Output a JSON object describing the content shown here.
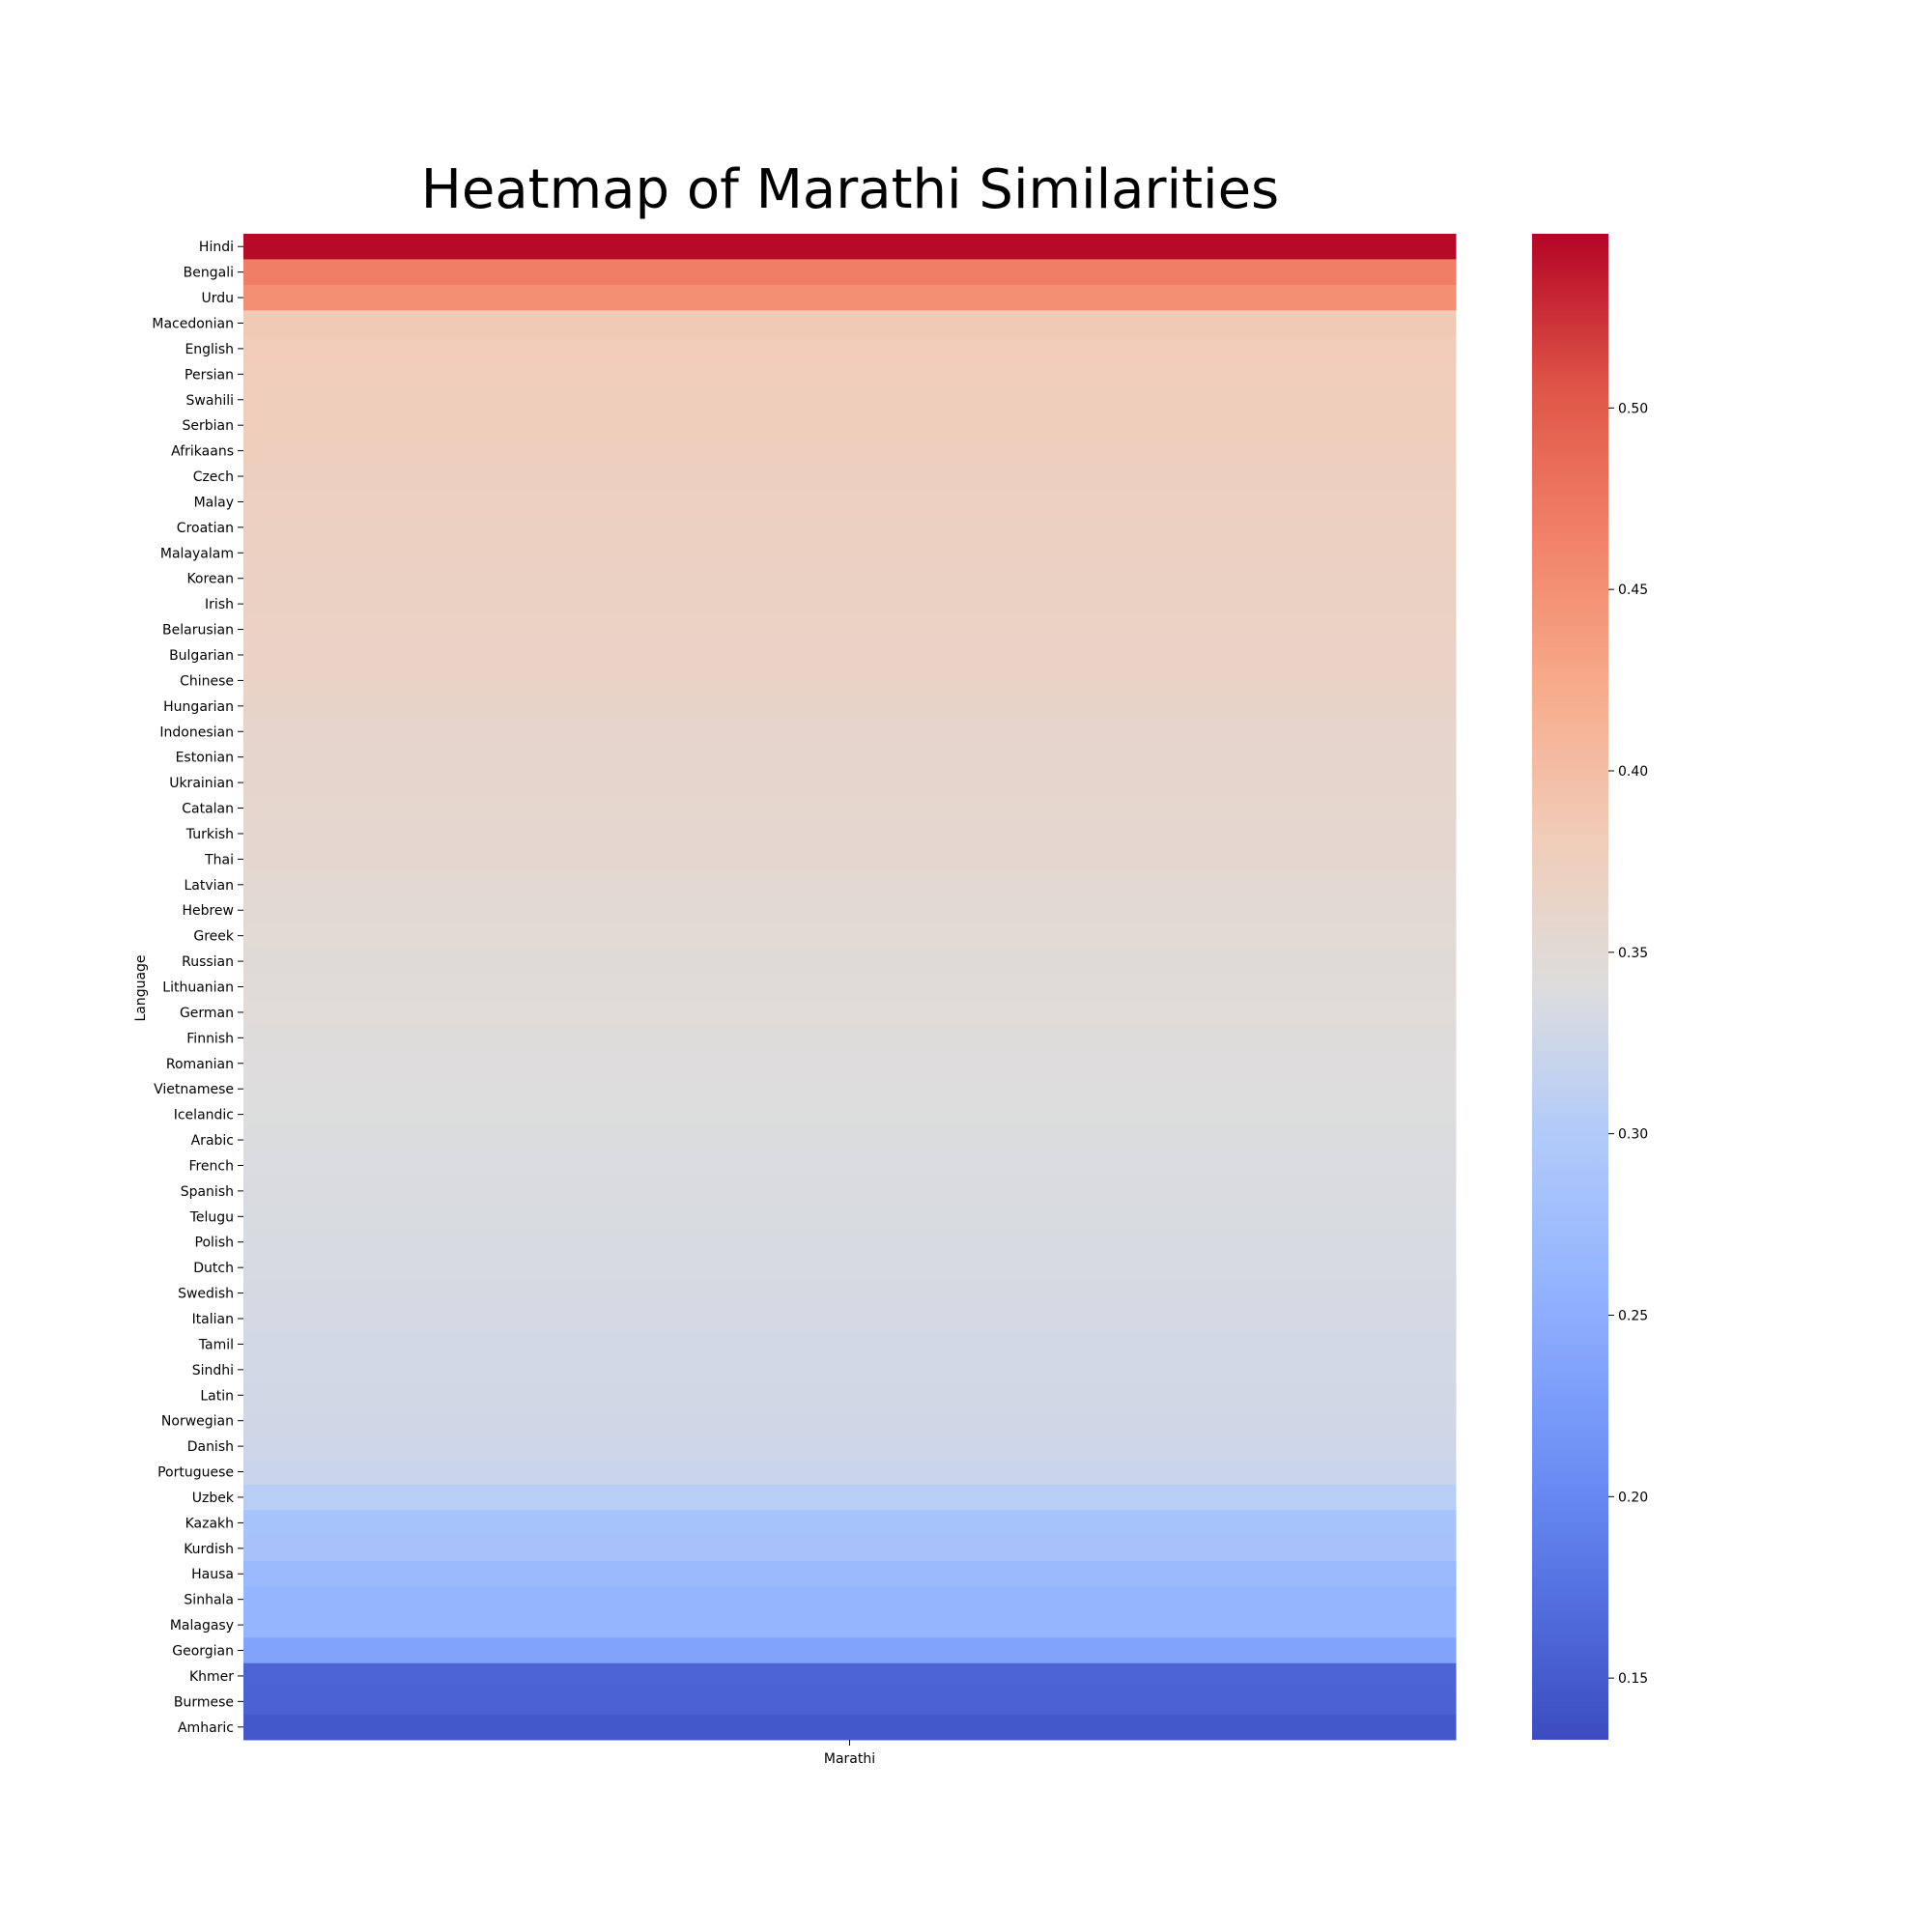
{
  "chart_data": {
    "type": "heatmap",
    "title": "Heatmap of Marathi Similarities",
    "xlabel": "",
    "ylabel": "Language",
    "columns": [
      "Marathi"
    ],
    "rows": [
      "Hindi",
      "Bengali",
      "Urdu",
      "Macedonian",
      "English",
      "Persian",
      "Swahili",
      "Serbian",
      "Afrikaans",
      "Czech",
      "Malay",
      "Croatian",
      "Malayalam",
      "Korean",
      "Irish",
      "Belarusian",
      "Bulgarian",
      "Chinese",
      "Hungarian",
      "Indonesian",
      "Estonian",
      "Ukrainian",
      "Catalan",
      "Turkish",
      "Thai",
      "Latvian",
      "Hebrew",
      "Greek",
      "Russian",
      "Lithuanian",
      "German",
      "Finnish",
      "Romanian",
      "Vietnamese",
      "Icelandic",
      "Arabic",
      "French",
      "Spanish",
      "Telugu",
      "Polish",
      "Dutch",
      "Swedish",
      "Italian",
      "Tamil",
      "Sindhi",
      "Latin",
      "Norwegian",
      "Danish",
      "Portuguese",
      "Uzbek",
      "Kazakh",
      "Kurdish",
      "Hausa",
      "Sinhala",
      "Malagasy",
      "Georgian",
      "Khmer",
      "Burmese",
      "Amharic"
    ],
    "values": [
      0.545,
      0.468,
      0.451,
      0.384,
      0.382,
      0.38,
      0.378,
      0.377,
      0.376,
      0.374,
      0.373,
      0.372,
      0.371,
      0.37,
      0.369,
      0.368,
      0.366,
      0.365,
      0.364,
      0.362,
      0.36,
      0.359,
      0.357,
      0.356,
      0.355,
      0.353,
      0.351,
      0.349,
      0.347,
      0.346,
      0.344,
      0.343,
      0.342,
      0.341,
      0.34,
      0.339,
      0.338,
      0.337,
      0.336,
      0.335,
      0.334,
      0.333,
      0.332,
      0.331,
      0.33,
      0.329,
      0.327,
      0.325,
      0.323,
      0.307,
      0.286,
      0.285,
      0.27,
      0.262,
      0.261,
      0.235,
      0.158,
      0.157,
      0.146
    ],
    "colorbar": {
      "colormap": "coolwarm",
      "vmin": 0.133,
      "vmax": 0.548,
      "ticks": [
        0.15,
        0.2,
        0.25,
        0.3,
        0.35,
        0.4,
        0.45,
        0.5
      ],
      "tick_labels": [
        "0.15",
        "0.20",
        "0.25",
        "0.30",
        "0.35",
        "0.40",
        "0.45",
        "0.50"
      ]
    }
  }
}
